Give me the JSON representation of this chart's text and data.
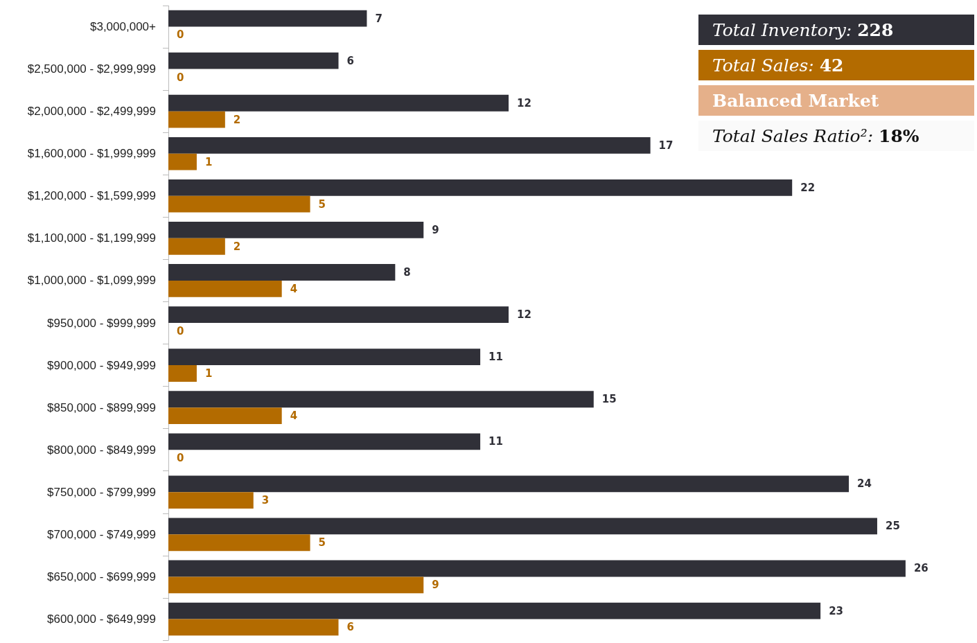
{
  "chart_data": {
    "type": "bar",
    "orientation": "horizontal",
    "categories": [
      "$3,000,000+",
      "$2,500,000 - $2,999,999",
      "$2,000,000 - $2,499,999",
      "$1,600,000 - $1,999,999",
      "$1,200,000 - $1,599,999",
      "$1,100,000 - $1,199,999",
      "$1,000,000 - $1,099,999",
      "$950,000 - $999,999",
      "$900,000 - $949,999",
      "$850,000 - $899,999",
      "$800,000 - $849,999",
      "$750,000 - $799,999",
      "$700,000 - $749,999",
      "$650,000 - $699,999",
      "$600,000 - $649,999"
    ],
    "series": [
      {
        "color": "#303038",
        "values": [
          7,
          6,
          12,
          17,
          22,
          9,
          8,
          12,
          11,
          15,
          11,
          24,
          25,
          26,
          23
        ]
      },
      {
        "color": "#b36b00",
        "values": [
          0,
          0,
          2,
          1,
          5,
          2,
          4,
          0,
          1,
          4,
          0,
          3,
          5,
          9,
          6
        ]
      }
    ],
    "data_labels": true,
    "tick_labels": "y",
    "annotations": [
      "Total Inventory: 228",
      "Total Sales: 42",
      "Balanced Market",
      "Total Sales Ratio²: 18%"
    ]
  }
}
